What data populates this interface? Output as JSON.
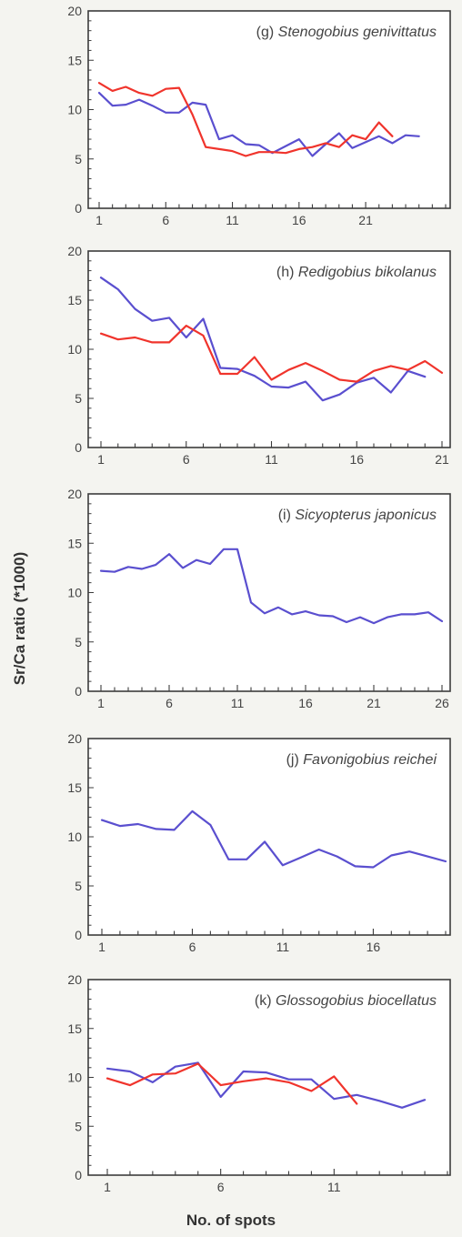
{
  "figure": {
    "ylabel": "Sr/Ca ratio (*1000)",
    "xlabel": "No. of spots"
  },
  "colors": {
    "blue": "#5a4fcf",
    "red": "#f0342c",
    "axis": "#3c3c3c"
  },
  "chart_data": [
    {
      "type": "line",
      "panel_label": "(g)",
      "species": "Stenogobius genivittatus",
      "xlim": [
        1,
        27
      ],
      "ylim": [
        0,
        20
      ],
      "xticks": [
        1,
        6,
        11,
        16,
        21
      ],
      "yticks": [
        0,
        5,
        10,
        15,
        20
      ],
      "series": [
        {
          "color": "#5a4fcf",
          "values": [
            11.7,
            10.4,
            10.5,
            11.0,
            10.4,
            9.7,
            9.7,
            10.7,
            10.5,
            7.0,
            7.4,
            6.5,
            6.4,
            5.6,
            6.3,
            7.0,
            5.3,
            6.5,
            7.6,
            6.1,
            6.7,
            7.3,
            6.6,
            7.4,
            7.3
          ]
        },
        {
          "color": "#f0342c",
          "values": [
            12.7,
            11.9,
            12.3,
            11.7,
            11.4,
            12.1,
            12.2,
            9.5,
            6.2,
            6.0,
            5.8,
            5.3,
            5.7,
            5.7,
            5.6,
            6.0,
            6.2,
            6.6,
            6.2,
            7.4,
            7.0,
            8.7,
            7.3
          ]
        }
      ]
    },
    {
      "type": "line",
      "panel_label": "(h)",
      "species": "Redigobius bikolanus",
      "xlim": [
        1,
        21
      ],
      "ylim": [
        0,
        20
      ],
      "xticks": [
        1,
        6,
        11,
        16,
        21
      ],
      "yticks": [
        0,
        5,
        10,
        15,
        20
      ],
      "series": [
        {
          "color": "#5a4fcf",
          "values": [
            17.3,
            16.1,
            14.1,
            12.9,
            13.2,
            11.2,
            13.1,
            8.1,
            8.0,
            7.3,
            6.2,
            6.1,
            6.7,
            4.8,
            5.4,
            6.6,
            7.1,
            5.6,
            7.8,
            7.2
          ]
        },
        {
          "color": "#f0342c",
          "values": [
            11.6,
            11.0,
            11.2,
            10.7,
            10.7,
            12.4,
            11.4,
            7.5,
            7.5,
            9.2,
            6.9,
            7.9,
            8.6,
            7.8,
            6.9,
            6.7,
            7.8,
            8.3,
            7.9,
            8.8,
            7.6
          ]
        }
      ]
    },
    {
      "type": "line",
      "panel_label": "(i)",
      "species": "Sicyopterus japonicus",
      "xlim": [
        1,
        26
      ],
      "ylim": [
        0,
        20
      ],
      "xticks": [
        1,
        6,
        11,
        16,
        21,
        26
      ],
      "yticks": [
        0,
        5,
        10,
        15,
        20
      ],
      "series": [
        {
          "color": "#5a4fcf",
          "values": [
            12.2,
            12.1,
            12.6,
            12.4,
            12.8,
            13.9,
            12.5,
            13.3,
            12.9,
            14.4,
            14.4,
            9.0,
            7.9,
            8.5,
            7.8,
            8.1,
            7.7,
            7.6,
            7.0,
            7.5,
            6.9,
            7.5,
            7.8,
            7.8,
            8.0,
            7.1
          ]
        }
      ]
    },
    {
      "type": "line",
      "panel_label": "(j)",
      "species": "Favonigobius reichei",
      "xlim": [
        1,
        20
      ],
      "ylim": [
        0,
        20
      ],
      "xticks": [
        1,
        6,
        11,
        16
      ],
      "yticks": [
        0,
        5,
        10,
        15,
        20
      ],
      "series": [
        {
          "color": "#5a4fcf",
          "values": [
            11.7,
            11.1,
            11.3,
            10.8,
            10.7,
            12.6,
            11.2,
            7.7,
            7.7,
            9.5,
            7.1,
            7.9,
            8.7,
            8.0,
            7.0,
            6.9,
            8.1,
            8.5,
            8.0,
            7.5
          ]
        }
      ]
    },
    {
      "type": "line",
      "panel_label": "(k)",
      "species": "Glossogobius biocellatus",
      "xlim": [
        1,
        16
      ],
      "ylim": [
        0,
        20
      ],
      "xticks": [
        1,
        6,
        11
      ],
      "yticks": [
        0,
        5,
        10,
        15,
        20
      ],
      "series": [
        {
          "color": "#5a4fcf",
          "values": [
            10.9,
            10.6,
            9.5,
            11.1,
            11.5,
            8.0,
            10.6,
            10.5,
            9.8,
            9.8,
            7.8,
            8.2,
            7.6,
            6.9,
            7.7
          ]
        },
        {
          "color": "#f0342c",
          "values": [
            9.9,
            9.2,
            10.3,
            10.4,
            11.4,
            9.2,
            9.6,
            9.9,
            9.5,
            8.6,
            10.1,
            7.3
          ]
        }
      ]
    }
  ]
}
